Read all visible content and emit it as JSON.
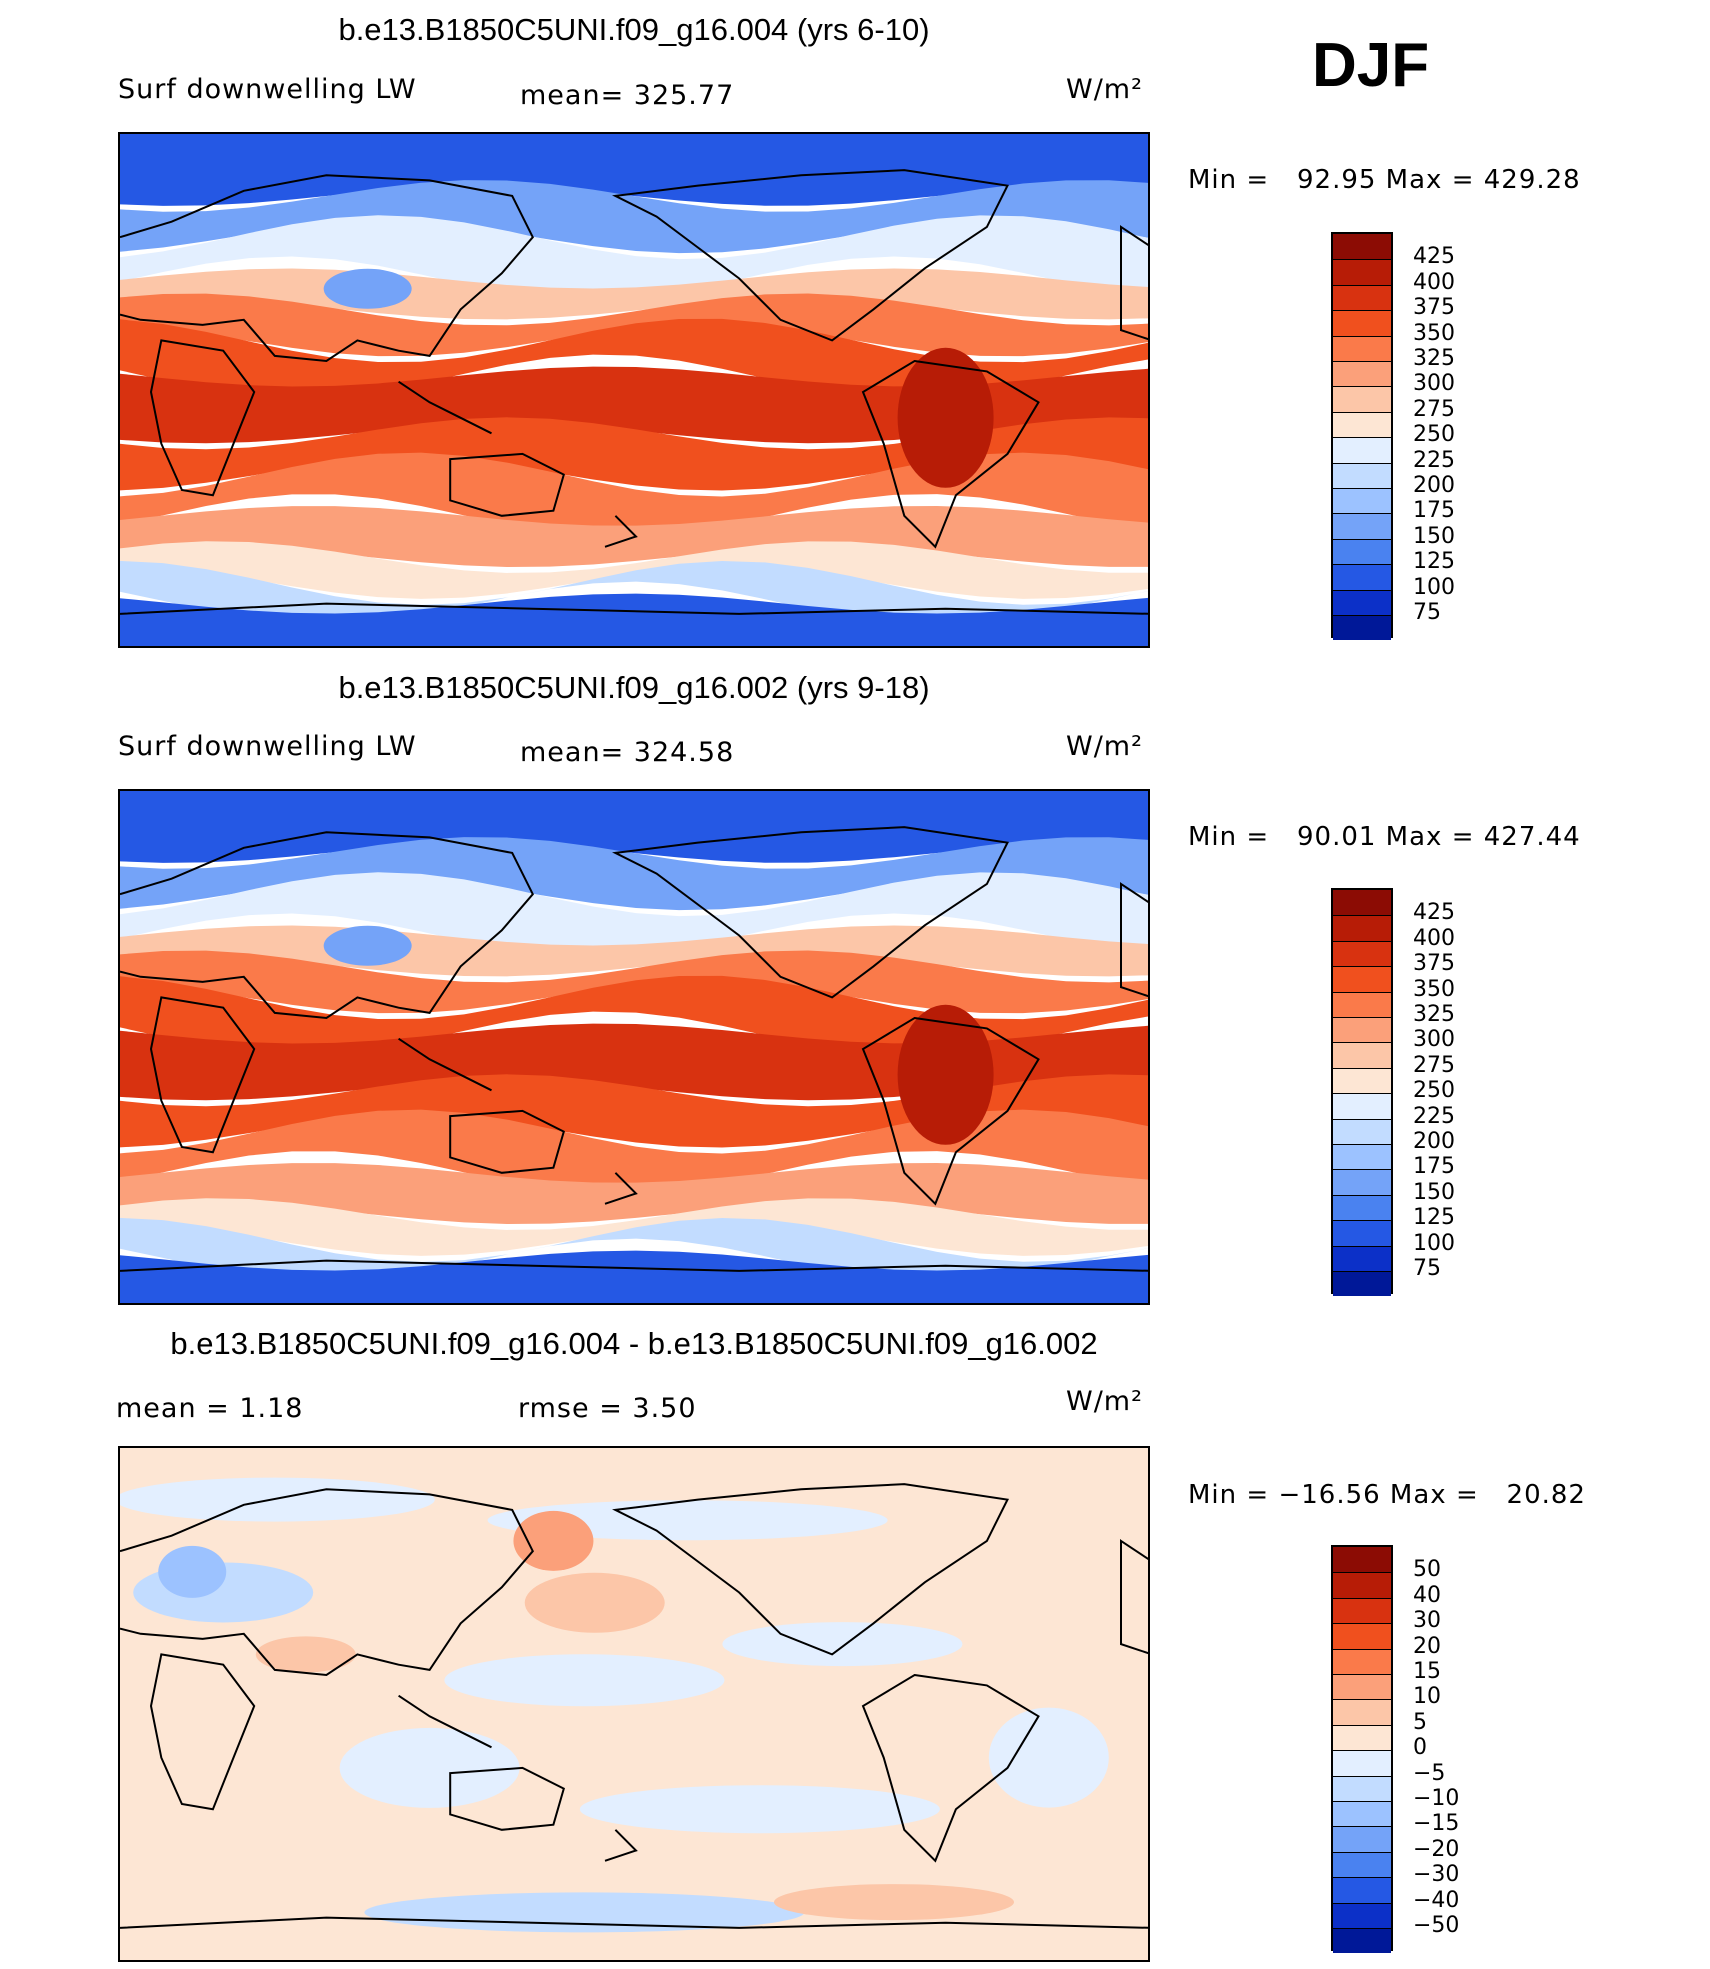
{
  "season": "DJF",
  "panels": [
    {
      "title": "b.e13.B1850C5UNI.f09_g16.004 (yrs 6-10)",
      "left_label": "Surf downwelling LW",
      "center_label": "mean= 325.77",
      "units": "W/m²",
      "minmax": "Min =   92.95 Max = 429.28"
    },
    {
      "title": "b.e13.B1850C5UNI.f09_g16.002 (yrs 9-18)",
      "left_label": "Surf downwelling LW",
      "center_label": "mean= 324.58",
      "units": "W/m²",
      "minmax": "Min =   90.01 Max = 427.44"
    },
    {
      "title": "b.e13.B1850C5UNI.f09_g16.004 - b.e13.B1850C5UNI.f09_g16.002",
      "left_label": "mean =    1.18",
      "center_label": "rmse =    3.50",
      "units": "W/m²",
      "minmax": "Min = −16.56 Max =   20.82"
    }
  ],
  "chart_data": [
    {
      "type": "heatmap",
      "title": "b.e13.B1850C5UNI.f09_g16.004 (yrs 6-10)",
      "variable": "Surf downwelling LW",
      "units": "W/m²",
      "mean": 325.77,
      "min": 92.95,
      "max": 429.28,
      "colorbar_levels": [
        "425",
        "400",
        "375",
        "350",
        "325",
        "300",
        "275",
        "250",
        "225",
        "200",
        "175",
        "150",
        "125",
        "100",
        "75"
      ],
      "colorbar_colors": [
        "#8c0c04",
        "#b71c06",
        "#d83210",
        "#f0501e",
        "#fa7a4a",
        "#fba07a",
        "#fcc6a8",
        "#fde6d4",
        "#e3efff",
        "#c2dcff",
        "#9cc2ff",
        "#74a3f8",
        "#4a82f0",
        "#2558e4",
        "#0c30c8",
        "#001898"
      ]
    },
    {
      "type": "heatmap",
      "title": "b.e13.B1850C5UNI.f09_g16.002 (yrs 9-18)",
      "variable": "Surf downwelling LW",
      "units": "W/m²",
      "mean": 324.58,
      "min": 90.01,
      "max": 427.44,
      "colorbar_levels": [
        "425",
        "400",
        "375",
        "350",
        "325",
        "300",
        "275",
        "250",
        "225",
        "200",
        "175",
        "150",
        "125",
        "100",
        "75"
      ],
      "colorbar_colors": [
        "#8c0c04",
        "#b71c06",
        "#d83210",
        "#f0501e",
        "#fa7a4a",
        "#fba07a",
        "#fcc6a8",
        "#fde6d4",
        "#e3efff",
        "#c2dcff",
        "#9cc2ff",
        "#74a3f8",
        "#4a82f0",
        "#2558e4",
        "#0c30c8",
        "#001898"
      ]
    },
    {
      "type": "heatmap",
      "title": "b.e13.B1850C5UNI.f09_g16.004 - b.e13.B1850C5UNI.f09_g16.002",
      "units": "W/m²",
      "mean": 1.18,
      "rmse": 3.5,
      "min": -16.56,
      "max": 20.82,
      "colorbar_levels": [
        "50",
        "40",
        "30",
        "20",
        "15",
        "10",
        "5",
        "0",
        "−5",
        "−10",
        "−15",
        "−20",
        "−30",
        "−40",
        "−50"
      ],
      "colorbar_colors": [
        "#8c0c04",
        "#b71c06",
        "#d83210",
        "#f0501e",
        "#fa7a4a",
        "#fba07a",
        "#fcc6a8",
        "#fde6d4",
        "#e3efff",
        "#c2dcff",
        "#9cc2ff",
        "#74a3f8",
        "#4a82f0",
        "#2558e4",
        "#0c30c8",
        "#001898"
      ]
    }
  ]
}
